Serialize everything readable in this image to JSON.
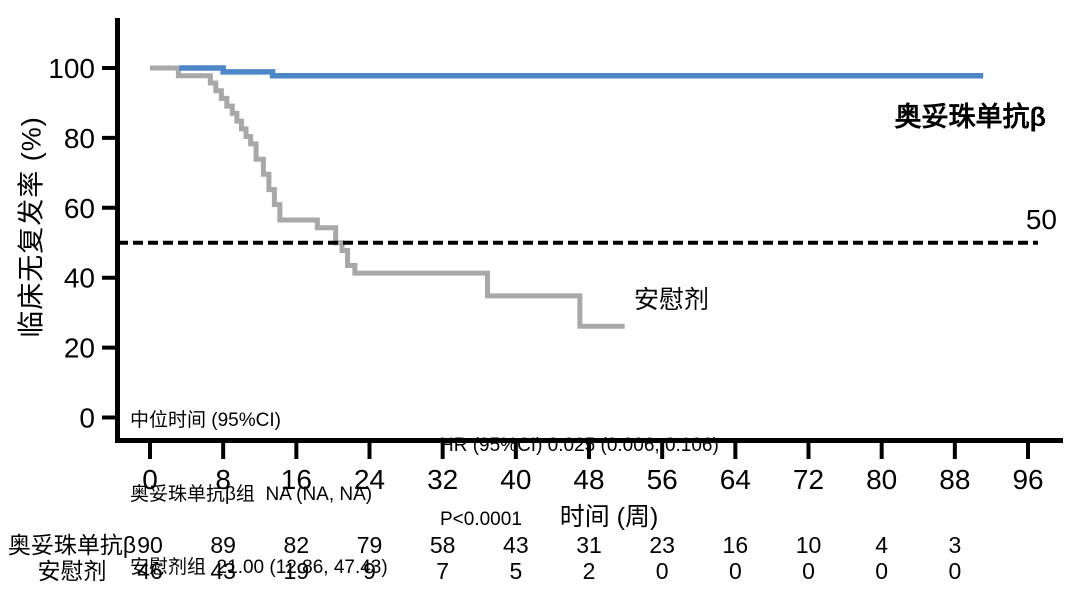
{
  "page": {
    "background": "#ffffff"
  },
  "chart_data": {
    "type": "line",
    "subtype": "kaplan_meier_step",
    "title": "",
    "xlabel": "时间 (周)",
    "ylabel": "临床无复发率 (%)",
    "xlim": [
      0,
      96
    ],
    "ylim": [
      0,
      100
    ],
    "grid": false,
    "x_ticks": [
      0,
      8,
      16,
      24,
      32,
      40,
      48,
      56,
      64,
      72,
      80,
      88,
      96
    ],
    "y_ticks": [
      0,
      20,
      40,
      60,
      80,
      100
    ],
    "axis_color": "#000000",
    "reference_line": {
      "y": 50,
      "label": "50",
      "style": "dashed",
      "color": "#000000"
    },
    "series": [
      {
        "name": "奥妥珠单抗β",
        "color": "#4c87c8",
        "steps": [
          [
            3.2,
            100
          ],
          [
            8.0,
            98.9
          ],
          [
            13.4,
            97.8
          ]
        ],
        "end_t": 91.1
      },
      {
        "name": "安慰剂",
        "color": "#a8a8a8",
        "steps": [
          [
            0,
            100
          ],
          [
            3.1,
            97.8
          ],
          [
            6.6,
            95.7
          ],
          [
            7.2,
            93.5
          ],
          [
            7.8,
            91.3
          ],
          [
            8.4,
            89.1
          ],
          [
            9.0,
            87.0
          ],
          [
            9.5,
            84.8
          ],
          [
            10.0,
            82.6
          ],
          [
            10.5,
            80.4
          ],
          [
            11.0,
            78.3
          ],
          [
            11.6,
            73.9
          ],
          [
            12.4,
            69.6
          ],
          [
            13.0,
            65.2
          ],
          [
            13.6,
            60.9
          ],
          [
            14.2,
            56.5
          ],
          [
            18.3,
            54.3
          ],
          [
            20.3,
            50.0
          ],
          [
            21.0,
            47.8
          ],
          [
            21.6,
            43.5
          ],
          [
            22.4,
            41.3
          ],
          [
            36.9,
            34.8
          ],
          [
            47.0,
            26.1
          ]
        ],
        "end_t": 51.9
      }
    ],
    "curve_labels": [
      {
        "text": "奥妥珠单抗β",
        "series": "奥妥珠单抗β"
      },
      {
        "text": "安慰剂",
        "series": "安慰剂"
      }
    ],
    "annotations": {
      "median_title": "中位时间 (95%CI)",
      "median_line1": "奥妥珠单抗β组  NA (NA, NA)",
      "median_line2": "安慰剂组  21.00 (12.86, 47.43)",
      "hr_line": "HR (95%CI) 0.025 (0.006, 0.106)",
      "p_line": "P<0.0001"
    },
    "risk_table": {
      "rows": [
        {
          "label": "奥妥珠单抗β",
          "values": [
            "90",
            "89",
            "82",
            "79",
            "58",
            "43",
            "31",
            "23",
            "16",
            "10",
            "4",
            "3",
            ""
          ]
        },
        {
          "label": "安慰剂",
          "values": [
            "46",
            "43",
            "19",
            "9",
            "7",
            "5",
            "2",
            "0",
            "0",
            "0",
            "0",
            "0",
            ""
          ]
        }
      ]
    }
  }
}
